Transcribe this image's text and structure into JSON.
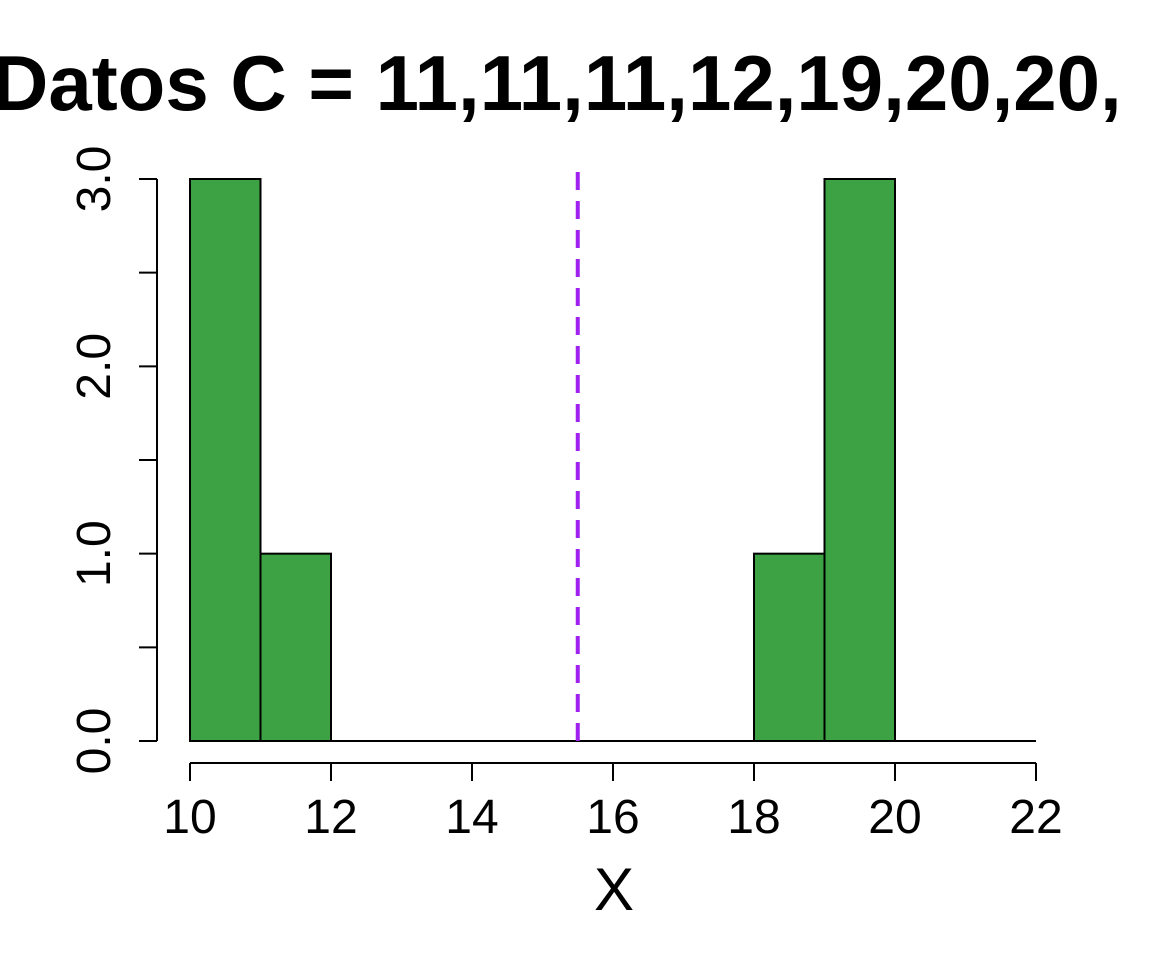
{
  "chart_data": {
    "type": "bar",
    "title": "Datos C = 11,11,11,12,19,20,20,",
    "xlabel": "X",
    "ylabel": "",
    "bins": [
      {
        "start": 10,
        "end": 11,
        "count": 3
      },
      {
        "start": 11,
        "end": 12,
        "count": 1
      },
      {
        "start": 12,
        "end": 13,
        "count": 0
      },
      {
        "start": 13,
        "end": 14,
        "count": 0
      },
      {
        "start": 14,
        "end": 15,
        "count": 0
      },
      {
        "start": 15,
        "end": 16,
        "count": 0
      },
      {
        "start": 16,
        "end": 17,
        "count": 0
      },
      {
        "start": 17,
        "end": 18,
        "count": 0
      },
      {
        "start": 18,
        "end": 19,
        "count": 1
      },
      {
        "start": 19,
        "end": 20,
        "count": 3
      },
      {
        "start": 20,
        "end": 21,
        "count": 0
      },
      {
        "start": 21,
        "end": 22,
        "count": 0
      }
    ],
    "xlim": [
      10,
      22
    ],
    "ylim": [
      0,
      3
    ],
    "x_ticks": [
      10,
      12,
      14,
      16,
      18,
      20,
      22
    ],
    "x_tick_labels": [
      "10",
      "12",
      "14",
      "16",
      "18",
      "20",
      "22"
    ],
    "y_ticks": [
      0,
      0.5,
      1,
      1.5,
      2,
      2.5,
      3
    ],
    "y_tick_labels": [
      "0.0",
      "",
      "1.0",
      "",
      "2.0",
      "",
      "3.0"
    ],
    "reference_line": {
      "x": 15.5,
      "style": "dashed",
      "color": "#A020F0"
    },
    "bar_color": "#3CA243",
    "grid": false,
    "legend": "none"
  }
}
